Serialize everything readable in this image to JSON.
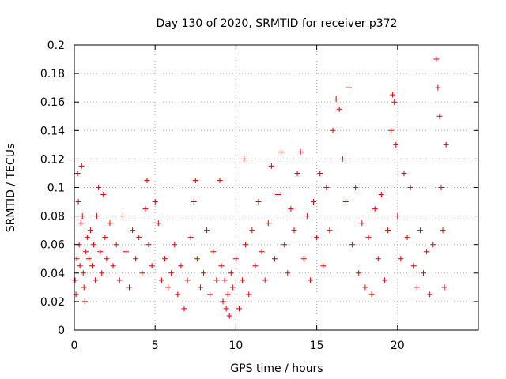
{
  "chart_data": {
    "type": "scatter",
    "title": "Day 130 of 2020, SRMTID for receiver p372",
    "xlabel": "GPS time / hours",
    "ylabel": "SRMTID / TECUs",
    "xlim": [
      0,
      25
    ],
    "ylim": [
      0,
      0.2
    ],
    "xticks": [
      0,
      5,
      10,
      15,
      20
    ],
    "xtick_labels": [
      "0",
      "5",
      "10",
      "15",
      "20"
    ],
    "yticks": [
      0,
      0.02,
      0.04,
      0.06,
      0.08,
      0.1,
      0.12,
      0.14,
      0.16,
      0.18,
      0.2
    ],
    "ytick_labels": [
      "0",
      "0.02",
      "0.04",
      "0.06",
      "0.08",
      "0.1",
      "0.12",
      "0.14",
      "0.16",
      "0.18",
      "0.2"
    ],
    "grid": true,
    "marker": "+",
    "marker_color": "#e00000",
    "grid_color": "#b0b0b0",
    "axis_color": "#000000",
    "x_data_range": [
      0,
      23
    ],
    "series": [
      {
        "name": "SRMTID",
        "points": [
          [
            0.05,
            0.035
          ],
          [
            0.1,
            0.025
          ],
          [
            0.15,
            0.05
          ],
          [
            0.2,
            0.11
          ],
          [
            0.25,
            0.09
          ],
          [
            0.3,
            0.06
          ],
          [
            0.35,
            0.045
          ],
          [
            0.4,
            0.075
          ],
          [
            0.45,
            0.115
          ],
          [
            0.5,
            0.08
          ],
          [
            0.55,
            0.04
          ],
          [
            0.6,
            0.03
          ],
          [
            0.65,
            0.02
          ],
          [
            0.7,
            0.055
          ],
          [
            0.8,
            0.065
          ],
          [
            0.9,
            0.05
          ],
          [
            1.0,
            0.07
          ],
          [
            1.1,
            0.045
          ],
          [
            1.2,
            0.06
          ],
          [
            1.3,
            0.035
          ],
          [
            1.4,
            0.08
          ],
          [
            1.5,
            0.1
          ],
          [
            1.6,
            0.055
          ],
          [
            1.7,
            0.04
          ],
          [
            1.8,
            0.095
          ],
          [
            1.9,
            0.065
          ],
          [
            2.0,
            0.05
          ],
          [
            2.2,
            0.075
          ],
          [
            2.4,
            0.045
          ],
          [
            2.6,
            0.06
          ],
          [
            2.8,
            0.035
          ],
          [
            3.0,
            0.08
          ],
          [
            3.2,
            0.055
          ],
          [
            3.4,
            0.03
          ],
          [
            3.6,
            0.07
          ],
          [
            3.8,
            0.05
          ],
          [
            4.0,
            0.065
          ],
          [
            4.2,
            0.04
          ],
          [
            4.4,
            0.085
          ],
          [
            4.5,
            0.105
          ],
          [
            4.6,
            0.06
          ],
          [
            4.8,
            0.045
          ],
          [
            5.0,
            0.09
          ],
          [
            5.2,
            0.075
          ],
          [
            5.4,
            0.035
          ],
          [
            5.6,
            0.05
          ],
          [
            5.8,
            0.03
          ],
          [
            6.0,
            0.04
          ],
          [
            6.2,
            0.06
          ],
          [
            6.4,
            0.025
          ],
          [
            6.6,
            0.045
          ],
          [
            6.8,
            0.015
          ],
          [
            7.0,
            0.035
          ],
          [
            7.2,
            0.065
          ],
          [
            7.4,
            0.09
          ],
          [
            7.5,
            0.105
          ],
          [
            7.6,
            0.05
          ],
          [
            7.8,
            0.03
          ],
          [
            8.0,
            0.04
          ],
          [
            8.2,
            0.07
          ],
          [
            8.4,
            0.025
          ],
          [
            8.6,
            0.055
          ],
          [
            8.8,
            0.035
          ],
          [
            9.0,
            0.105
          ],
          [
            9.1,
            0.045
          ],
          [
            9.2,
            0.02
          ],
          [
            9.3,
            0.035
          ],
          [
            9.4,
            0.015
          ],
          [
            9.5,
            0.025
          ],
          [
            9.6,
            0.01
          ],
          [
            9.7,
            0.04
          ],
          [
            9.8,
            0.03
          ],
          [
            10.0,
            0.05
          ],
          [
            10.2,
            0.015
          ],
          [
            10.4,
            0.035
          ],
          [
            10.5,
            0.12
          ],
          [
            10.6,
            0.06
          ],
          [
            10.8,
            0.025
          ],
          [
            11.0,
            0.07
          ],
          [
            11.2,
            0.045
          ],
          [
            11.4,
            0.09
          ],
          [
            11.6,
            0.055
          ],
          [
            11.8,
            0.035
          ],
          [
            12.0,
            0.075
          ],
          [
            12.2,
            0.115
          ],
          [
            12.4,
            0.05
          ],
          [
            12.6,
            0.095
          ],
          [
            12.8,
            0.125
          ],
          [
            13.0,
            0.06
          ],
          [
            13.2,
            0.04
          ],
          [
            13.4,
            0.085
          ],
          [
            13.6,
            0.07
          ],
          [
            13.8,
            0.11
          ],
          [
            14.0,
            0.125
          ],
          [
            14.2,
            0.05
          ],
          [
            14.4,
            0.08
          ],
          [
            14.6,
            0.035
          ],
          [
            14.8,
            0.09
          ],
          [
            15.0,
            0.065
          ],
          [
            15.2,
            0.11
          ],
          [
            15.4,
            0.045
          ],
          [
            15.6,
            0.1
          ],
          [
            15.8,
            0.07
          ],
          [
            16.0,
            0.14
          ],
          [
            16.2,
            0.162
          ],
          [
            16.4,
            0.155
          ],
          [
            16.6,
            0.12
          ],
          [
            16.8,
            0.09
          ],
          [
            17.0,
            0.17
          ],
          [
            17.2,
            0.06
          ],
          [
            17.4,
            0.1
          ],
          [
            17.6,
            0.04
          ],
          [
            17.8,
            0.075
          ],
          [
            18.0,
            0.03
          ],
          [
            18.2,
            0.065
          ],
          [
            18.4,
            0.025
          ],
          [
            18.6,
            0.085
          ],
          [
            18.8,
            0.05
          ],
          [
            19.0,
            0.095
          ],
          [
            19.2,
            0.035
          ],
          [
            19.4,
            0.07
          ],
          [
            19.6,
            0.14
          ],
          [
            19.7,
            0.165
          ],
          [
            19.8,
            0.16
          ],
          [
            19.9,
            0.13
          ],
          [
            20.0,
            0.08
          ],
          [
            20.2,
            0.05
          ],
          [
            20.4,
            0.11
          ],
          [
            20.6,
            0.065
          ],
          [
            20.8,
            0.1
          ],
          [
            21.0,
            0.045
          ],
          [
            21.2,
            0.03
          ],
          [
            21.4,
            0.07
          ],
          [
            21.6,
            0.04
          ],
          [
            21.8,
            0.055
          ],
          [
            22.0,
            0.025
          ],
          [
            22.2,
            0.06
          ],
          [
            22.4,
            0.19
          ],
          [
            22.5,
            0.17
          ],
          [
            22.6,
            0.15
          ],
          [
            22.7,
            0.1
          ],
          [
            22.8,
            0.07
          ],
          [
            22.9,
            0.03
          ],
          [
            23.0,
            0.13
          ]
        ]
      }
    ]
  }
}
